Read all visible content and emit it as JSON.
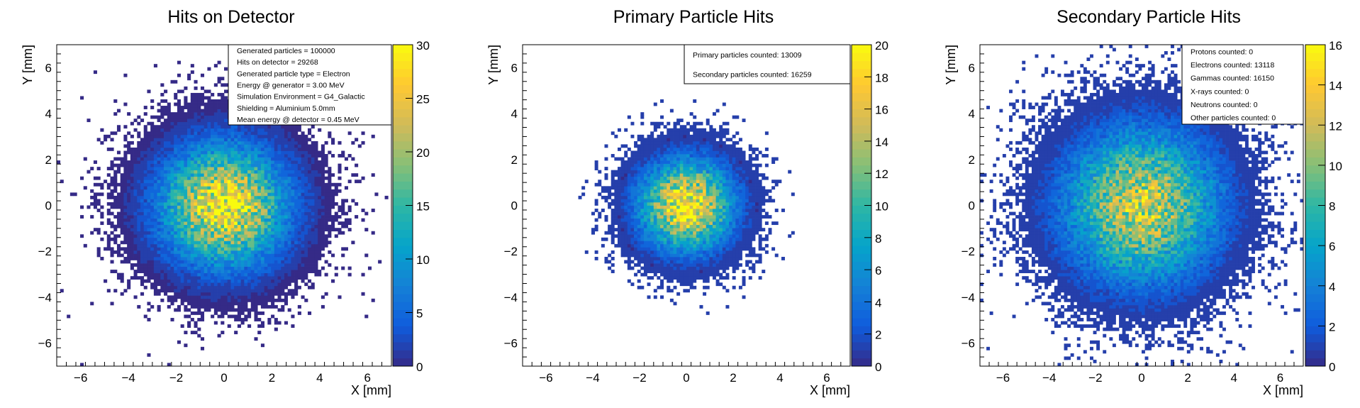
{
  "chart_data": [
    {
      "type": "heatmap",
      "title": "Hits on Detector",
      "xlabel": "X [mm]",
      "ylabel": "Y [mm]",
      "xlim": [
        -7,
        7
      ],
      "ylim": [
        -7,
        7
      ],
      "x_ticks": [
        "−6",
        "−4",
        "−2",
        "0",
        "2",
        "4",
        "6"
      ],
      "y_ticks": [
        "−6",
        "−4",
        "−2",
        "0",
        "2",
        "4",
        "6"
      ],
      "z_range": [
        0,
        30
      ],
      "colorbar_ticks": [
        "0",
        "5",
        "10",
        "15",
        "20",
        "25",
        "30"
      ],
      "distribution": {
        "center": [
          0,
          0
        ],
        "sigma_mm": 1.7,
        "peak_count": 27,
        "max_radius_mm": 10
      },
      "legend_position": "top-right",
      "stats": [
        "Generated particles = 100000",
        "Hits on detector = 29268",
        "Generated particle type = Electron",
        "Energy @ generator = 3.00 MeV",
        "Simulation Environment = G4_Galactic",
        "Shielding = Aluminium 5.0mm",
        "Mean energy @ detector = 0.45 MeV"
      ]
    },
    {
      "type": "heatmap",
      "title": "Primary Particle Hits",
      "xlabel": "X [mm]",
      "ylabel": "Y [mm]",
      "xlim": [
        -7,
        7
      ],
      "ylim": [
        -7,
        7
      ],
      "x_ticks": [
        "−6",
        "−4",
        "−2",
        "0",
        "2",
        "4",
        "6"
      ],
      "y_ticks": [
        "−6",
        "−4",
        "−2",
        "0",
        "2",
        "4",
        "6"
      ],
      "z_range": [
        0,
        20
      ],
      "colorbar_ticks": [
        "0",
        "2",
        "4",
        "6",
        "8",
        "10",
        "12",
        "14",
        "16",
        "18",
        "20"
      ],
      "distribution": {
        "center": [
          0,
          0
        ],
        "sigma_mm": 1.3,
        "peak_count": 18,
        "max_radius_mm": 4.8
      },
      "legend_position": "top-right",
      "stats": [
        "Primary particles counted: 13009",
        "Secondary particles counted: 16259"
      ]
    },
    {
      "type": "heatmap",
      "title": "Secondary Particle Hits",
      "xlabel": "X [mm]",
      "ylabel": "Y [mm]",
      "xlim": [
        -7,
        7
      ],
      "ylim": [
        -7,
        7
      ],
      "x_ticks": [
        "−6",
        "−4",
        "−2",
        "0",
        "2",
        "4",
        "6"
      ],
      "y_ticks": [
        "−6",
        "−4",
        "−2",
        "0",
        "2",
        "4",
        "6"
      ],
      "z_range": [
        0,
        16
      ],
      "colorbar_ticks": [
        "0",
        "2",
        "4",
        "6",
        "8",
        "10",
        "12",
        "14",
        "16"
      ],
      "distribution": {
        "center": [
          0,
          0
        ],
        "sigma_mm": 2.2,
        "peak_count": 12,
        "max_radius_mm": 10
      },
      "legend_position": "top-right",
      "stats": [
        "Protons counted: 0",
        "Electrons counted: 13118",
        "Gammas counted: 16150",
        "X-rays counted: 0",
        "Neutrons counted: 0",
        "Other particles counted: 0"
      ]
    }
  ],
  "colors": {
    "palette": [
      "#352a87",
      "#0f5cdd",
      "#1481d6",
      "#06a4ca",
      "#2eb7a4",
      "#87bf77",
      "#d1bb59",
      "#fec832",
      "#f9fb0e"
    ],
    "frame": "#000000",
    "background": "#ffffff"
  }
}
